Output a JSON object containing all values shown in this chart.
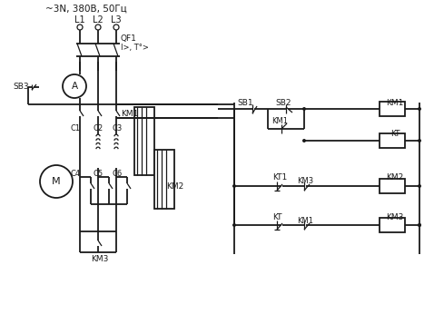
{
  "bg_color": "#ffffff",
  "line_color": "#1a1a1a",
  "lw": 1.3,
  "tlw": 0.9,
  "labels": {
    "title": "~3N, 380В, 50Гц",
    "L1": "L1",
    "L2": "L2",
    "L3": "L3",
    "QF1": "QF1",
    "QF1b": "I>, T°>",
    "SB3": "SB3",
    "KM1_pwr": "KM1",
    "KM2_pwr": "KM2",
    "KM3_pwr": "KM3",
    "C1": "C1",
    "C2": "C2",
    "C3": "C3",
    "C4": "C4",
    "C5": "C5",
    "C6": "C6",
    "A": "A",
    "M": "M",
    "SB1": "SB1",
    "SB2": "SB2",
    "KM1_coil": "KM1",
    "KT_coil": "KT",
    "KM2_coil": "KM2",
    "KM3_coil": "KM3",
    "KM1_nc": "KM1",
    "KT1": "KT1",
    "KM3_nc": "KM3",
    "KT_nc": "KT",
    "KM1_nc2": "KM1"
  }
}
